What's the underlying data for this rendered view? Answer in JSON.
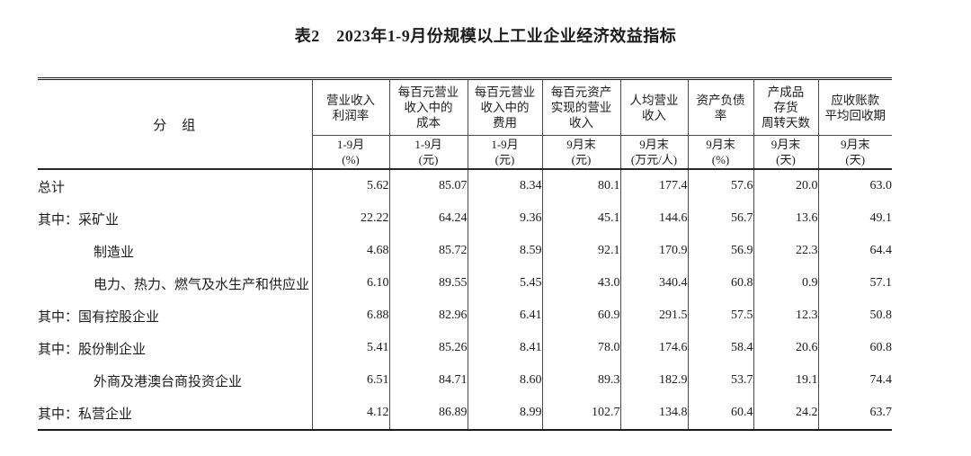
{
  "title": "表2　2023年1-9月份规模以上工业企业经济效益指标",
  "colors": {
    "background": "#ffffff",
    "text": "#1c1c1c",
    "thick_line": "#1b1b1b",
    "thin_line": "#4a4a4a"
  },
  "table": {
    "group_header": "分　组",
    "columns": [
      {
        "title": "营业收入\n利润率",
        "period": "1-9月",
        "unit": "(%)"
      },
      {
        "title": "每百元营业\n收入中的\n成本",
        "period": "1-9月",
        "unit": "(元)"
      },
      {
        "title": "每百元营业\n收入中的\n费用",
        "period": "1-9月",
        "unit": "(元)"
      },
      {
        "title": "每百元资产\n实现的营业\n收入",
        "period": "9月末",
        "unit": "(元)"
      },
      {
        "title": "人均营业\n收入",
        "period": "9月末",
        "unit": "(万元/人)"
      },
      {
        "title": "资产负债\n率",
        "period": "9月末",
        "unit": "(%)"
      },
      {
        "title": "产成品\n存货\n周转天数",
        "period": "9月末",
        "unit": "(天)"
      },
      {
        "title": "应收账款\n平均回收期",
        "period": "9月末",
        "unit": "(天)"
      }
    ],
    "rows": [
      {
        "label": "总计",
        "indent": 0,
        "values": [
          "5.62",
          "85.07",
          "8.34",
          "80.1",
          "177.4",
          "57.6",
          "20.0",
          "63.0"
        ]
      },
      {
        "label": "其中：采矿业",
        "indent": 0,
        "values": [
          "22.22",
          "64.24",
          "9.36",
          "45.1",
          "144.6",
          "56.7",
          "13.6",
          "49.1"
        ]
      },
      {
        "label": "制造业",
        "indent": 1,
        "values": [
          "4.68",
          "85.72",
          "8.59",
          "92.1",
          "170.9",
          "56.9",
          "22.3",
          "64.4"
        ]
      },
      {
        "label": "电力、热力、燃气及水生产和供应业",
        "indent": 1,
        "values": [
          "6.10",
          "89.55",
          "5.45",
          "43.0",
          "340.4",
          "60.8",
          "0.9",
          "57.1"
        ]
      },
      {
        "label": "其中：国有控股企业",
        "indent": 0,
        "values": [
          "6.88",
          "82.96",
          "6.41",
          "60.9",
          "291.5",
          "57.5",
          "12.3",
          "50.8"
        ]
      },
      {
        "label": "其中：股份制企业",
        "indent": 0,
        "values": [
          "5.41",
          "85.26",
          "8.41",
          "78.0",
          "174.6",
          "58.4",
          "20.6",
          "60.8"
        ]
      },
      {
        "label": "外商及港澳台商投资企业",
        "indent": 1,
        "values": [
          "6.51",
          "84.71",
          "8.60",
          "89.3",
          "182.9",
          "53.7",
          "19.1",
          "74.4"
        ]
      },
      {
        "label": "其中：私营企业",
        "indent": 0,
        "values": [
          "4.12",
          "86.89",
          "8.99",
          "102.7",
          "134.8",
          "60.4",
          "24.2",
          "63.7"
        ]
      }
    ]
  }
}
